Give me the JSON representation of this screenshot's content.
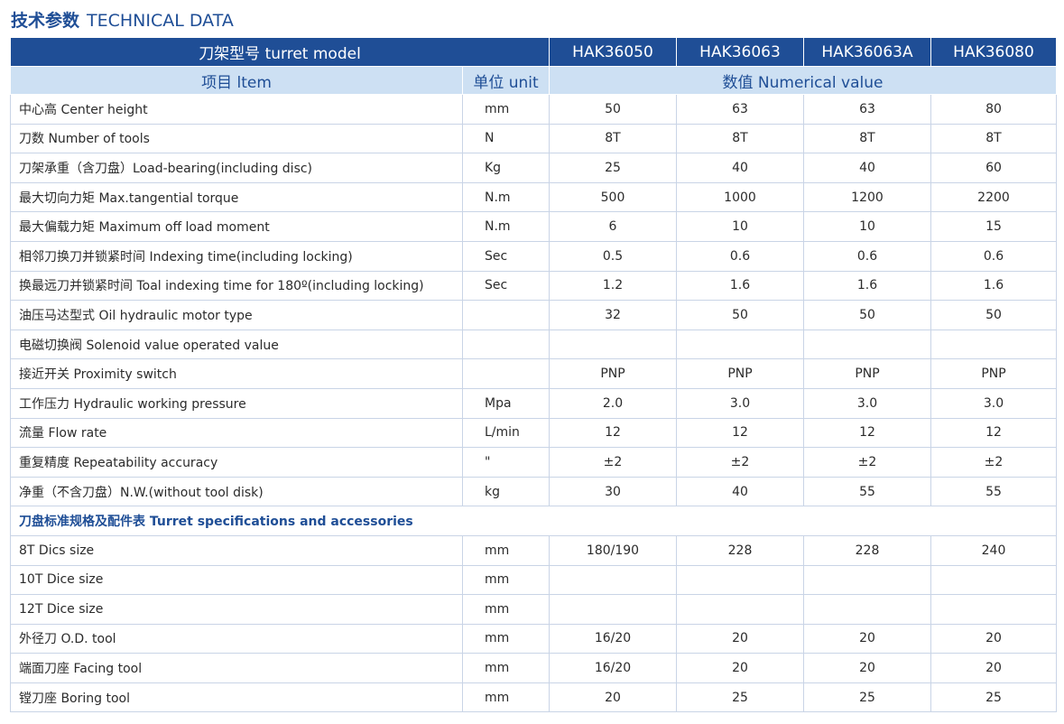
{
  "title": {
    "zh": "技术参数",
    "en": "TECHNICAL DATA"
  },
  "header": {
    "model_label": "刀架型号  turret model",
    "models": [
      "HAK36050",
      "HAK36063",
      "HAK36063A",
      "HAK36080"
    ],
    "item_label": "项目  ltem",
    "unit_label": "单位 unit",
    "value_label": "数值  Numerical value"
  },
  "rows": [
    {
      "item": "中心高 Center height",
      "unit": "mm",
      "values": [
        "50",
        "63",
        "63",
        "80"
      ]
    },
    {
      "item": "刀数 Number of tools",
      "unit": "N",
      "values": [
        "8T",
        "8T",
        "8T",
        "8T"
      ]
    },
    {
      "item": "刀架承重（含刀盘）Load-bearing(including disc)",
      "unit": "Kg",
      "values": [
        "25",
        "40",
        "40",
        "60"
      ]
    },
    {
      "item": "最大切向力矩 Max.tangential torque",
      "unit": "N.m",
      "values": [
        "500",
        "1000",
        "1200",
        "2200"
      ]
    },
    {
      "item": "最大偏载力矩 Maximum off load moment",
      "unit": "N.m",
      "values": [
        "6",
        "10",
        "10",
        "15"
      ]
    },
    {
      "item": "相邻刀换刀并锁紧时间 Indexing time(including locking)",
      "unit": "Sec",
      "values": [
        "0.5",
        "0.6",
        "0.6",
        "0.6"
      ]
    },
    {
      "item": "换最远刀并锁紧时间 Toal indexing time for 180º(including locking)",
      "unit": "Sec",
      "values": [
        "1.2",
        "1.6",
        "1.6",
        "1.6"
      ]
    },
    {
      "item": "油压马达型式 Oil hydraulic motor type",
      "unit": "",
      "values": [
        "32",
        "50",
        "50",
        "50"
      ]
    },
    {
      "item": "电磁切换阀 Solenoid value operated value",
      "unit": "",
      "values": [
        "",
        "",
        "",
        ""
      ]
    },
    {
      "item": "接近开关 Proximity switch",
      "unit": "",
      "values": [
        "PNP",
        "PNP",
        "PNP",
        "PNP"
      ]
    },
    {
      "item": "工作压力 Hydraulic working pressure",
      "unit": "Mpa",
      "values": [
        "2.0",
        "3.0",
        "3.0",
        "3.0"
      ]
    },
    {
      "item": "流量 Flow rate",
      "unit": "L/min",
      "values": [
        "12",
        "12",
        "12",
        "12"
      ]
    },
    {
      "item": "重复精度 Repeatability accuracy",
      "unit": "\"",
      "values": [
        "±2",
        "±2",
        "±2",
        "±2"
      ]
    },
    {
      "item": "净重（不含刀盘）N.W.(without tool disk)",
      "unit": "kg",
      "values": [
        "30",
        "40",
        "55",
        "55"
      ]
    }
  ],
  "section_title": "刀盘标准规格及配件表 Turret specifications and accessories",
  "section_rows": [
    {
      "item": "8T Dics size",
      "unit": "mm",
      "values": [
        "180/190",
        "228",
        "228",
        "240"
      ]
    },
    {
      "item": "10T Dice size",
      "unit": "mm",
      "values": [
        "",
        "",
        "",
        ""
      ]
    },
    {
      "item": "12T Dice size",
      "unit": "mm",
      "values": [
        "",
        "",
        "",
        ""
      ]
    },
    {
      "item": "外径刀 O.D. tool",
      "unit": "mm",
      "values": [
        "16/20",
        "20",
        "20",
        "20"
      ]
    },
    {
      "item": "端面刀座 Facing tool",
      "unit": "mm",
      "values": [
        "16/20",
        "20",
        "20",
        "20"
      ]
    },
    {
      "item": "镗刀座 Boring tool",
      "unit": "mm",
      "values": [
        "20",
        "25",
        "25",
        "25"
      ]
    }
  ]
}
